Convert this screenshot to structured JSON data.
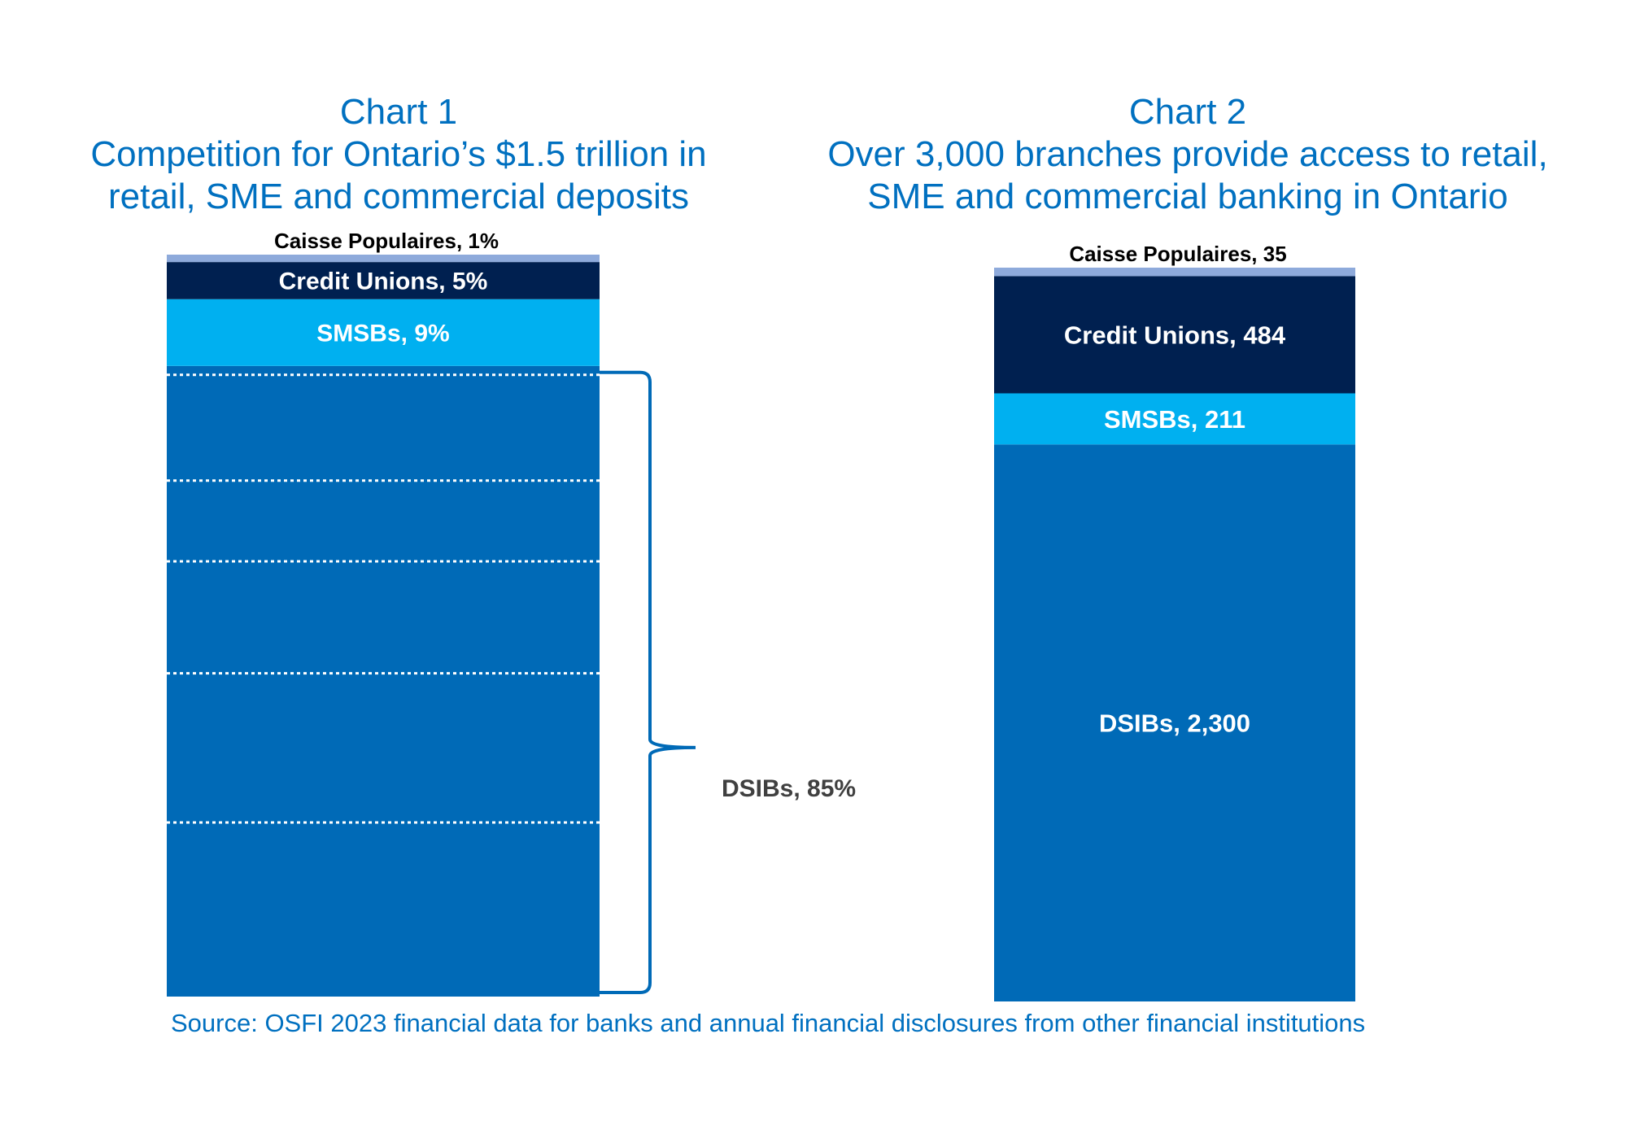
{
  "charts": [
    {
      "heading": "Chart 1",
      "title_lines": [
        "Competition for Ontario’s $1.5 trillion in",
        "retail, SME and commercial deposits"
      ]
    },
    {
      "heading": "Chart 2",
      "title_lines": [
        "Over 3,000 branches provide access to retail,",
        "SME and commercial banking in Ontario"
      ]
    }
  ],
  "source": "Source: OSFI 2023 financial data for banks and annual financial disclosures from other financial institutions",
  "colors": {
    "title": "#0070c0",
    "dsibs": "#006ab7",
    "smsbs": "#00b0f0",
    "credit_unions": "#002050",
    "caisse_populaires": "#8eaadb",
    "outside_label": "#404040"
  },
  "chart_data": [
    {
      "type": "bar",
      "stacked": true,
      "title": "Competition for Ontario’s $1.5 trillion in retail, SME and commercial deposits",
      "unit": "%",
      "segments": [
        {
          "name": "DSIBs",
          "value": 85,
          "label": "DSIBs, 85%",
          "label_position": "outside-right",
          "subdivisions": 6
        },
        {
          "name": "SMSBs",
          "value": 9,
          "label": "SMSBs, 9%",
          "label_position": "inside"
        },
        {
          "name": "Credit Unions",
          "value": 5,
          "label": "Credit Unions, 5%",
          "label_position": "inside"
        },
        {
          "name": "Caisse Populaires",
          "value": 1,
          "label": "Caisse Populaires, 1%",
          "label_position": "above"
        }
      ]
    },
    {
      "type": "bar",
      "stacked": true,
      "title": "Over 3,000 branches provide access to retail, SME and commercial banking in Ontario",
      "unit": "branches",
      "segments": [
        {
          "name": "DSIBs",
          "value": 2300,
          "label": "DSIBs, 2,300",
          "label_position": "inside"
        },
        {
          "name": "SMSBs",
          "value": 211,
          "label": "SMSBs, 211",
          "label_position": "inside"
        },
        {
          "name": "Credit Unions",
          "value": 484,
          "label": "Credit Unions, 484",
          "label_position": "inside"
        },
        {
          "name": "Caisse Populaires",
          "value": 35,
          "label": "Caisse Populaires, 35",
          "label_position": "above"
        }
      ]
    }
  ]
}
